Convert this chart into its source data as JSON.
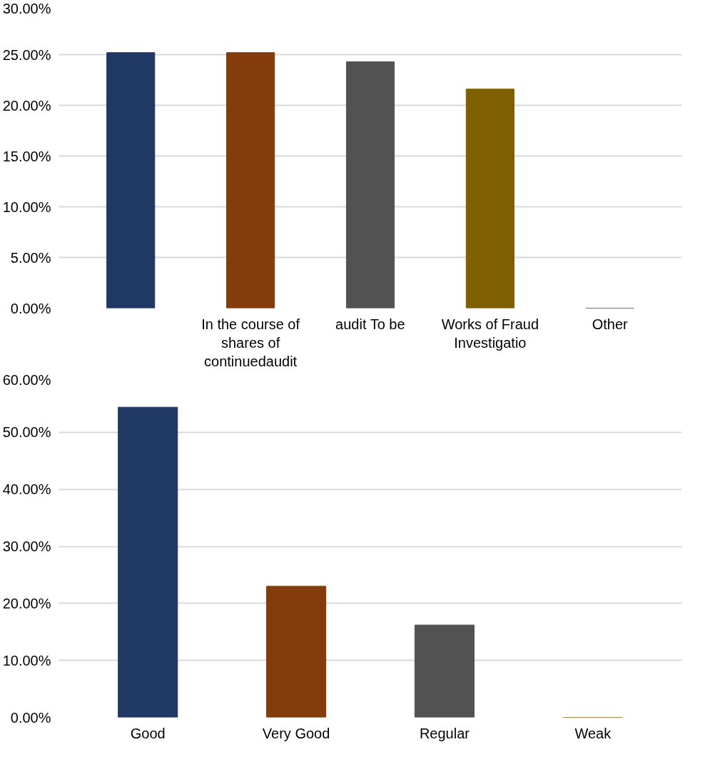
{
  "chart_data": [
    {
      "type": "bar",
      "categories": [
        null,
        "In the course of shares of continuedaudit",
        "audit To be",
        "Works of Fraud Investigatio",
        "Other"
      ],
      "values": [
        25.2,
        25.2,
        24.3,
        21.6,
        0
      ],
      "colors": [
        "#203864",
        "#843c0c",
        "#525252",
        "#7f6000",
        "#2e4d1f"
      ],
      "ylim": [
        0,
        30
      ],
      "yticks": [
        {
          "value": 0,
          "label": "0.00%"
        },
        {
          "value": 5,
          "label": "5.00%"
        },
        {
          "value": 10,
          "label": "10.00%"
        },
        {
          "value": 15,
          "label": "15.00%"
        },
        {
          "value": 20,
          "label": "20.00%"
        },
        {
          "value": 25,
          "label": "25.00%"
        },
        {
          "value": 30,
          "label": "30.00%"
        }
      ],
      "grid": "y"
    },
    {
      "type": "bar",
      "categories": [
        "Good",
        "Very Good",
        "Regular",
        "Weak"
      ],
      "values": [
        54.4,
        23.0,
        16.2,
        0
      ],
      "colors": [
        "#203864",
        "#843c0c",
        "#525252",
        "#7f6000"
      ],
      "ylim": [
        0,
        60
      ],
      "yticks": [
        {
          "value": 0,
          "label": "0.00%"
        },
        {
          "value": 10,
          "label": "10.00%"
        },
        {
          "value": 20,
          "label": "20.00%"
        },
        {
          "value": 30,
          "label": "30.00%"
        },
        {
          "value": 40,
          "label": "40.00%"
        },
        {
          "value": 50,
          "label": "50.00%"
        },
        {
          "value": 60,
          "label": "60.00%"
        }
      ],
      "grid": "y"
    }
  ]
}
